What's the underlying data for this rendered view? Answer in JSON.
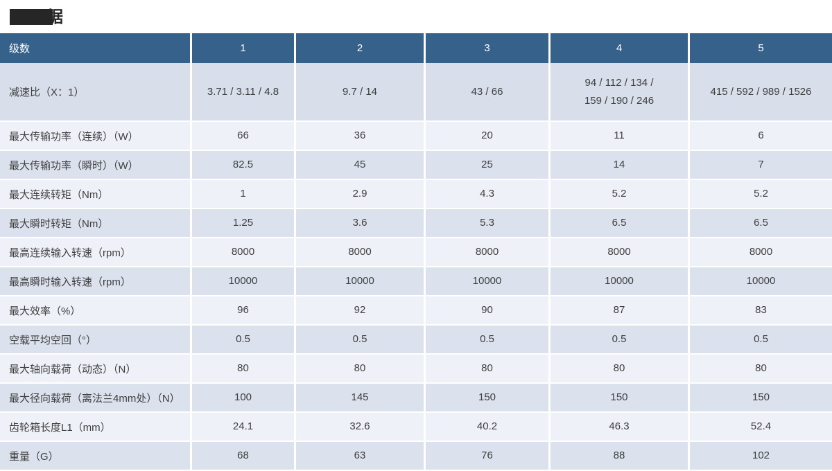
{
  "page": {
    "title": {
      "visible_char": "据",
      "note_redacted_block": true
    }
  },
  "colors": {
    "header_bg": "#35618a",
    "header_text": "#ffffff",
    "row_first_bg": "#d8deea",
    "row_dark_bg": "#dbe1ed",
    "row_light_bg": "#eef1f8",
    "cell_text": "#3e3e3e",
    "title_color": "#262626"
  },
  "table": {
    "header": [
      "级数",
      "1",
      "2",
      "3",
      "4",
      "5"
    ],
    "rows": [
      {
        "label": "减速比（X：1）",
        "values": [
          "3.71 / 3.11 / 4.8",
          "9.7 / 14",
          "43 / 66",
          "94 / 112 / 134 /\n159 / 190 / 246",
          "415 / 592 / 989 / 1526"
        ]
      },
      {
        "label": "最大传输功率（连续）（W）",
        "values": [
          "66",
          "36",
          "20",
          "11",
          "6"
        ]
      },
      {
        "label": "最大传输功率（瞬时）（W）",
        "values": [
          "82.5",
          "45",
          "25",
          "14",
          "7"
        ]
      },
      {
        "label": "最大连续转矩（Nm）",
        "values": [
          "1",
          "2.9",
          "4.3",
          "5.2",
          "5.2"
        ]
      },
      {
        "label": "最大瞬时转矩（Nm）",
        "values": [
          "1.25",
          "3.6",
          "5.3",
          "6.5",
          "6.5"
        ]
      },
      {
        "label": "最高连续输入转速（rpm）",
        "values": [
          "8000",
          "8000",
          "8000",
          "8000",
          "8000"
        ]
      },
      {
        "label": "最高瞬时输入转速（rpm）",
        "values": [
          "10000",
          "10000",
          "10000",
          "10000",
          "10000"
        ]
      },
      {
        "label": "最大效率（%）",
        "values": [
          "96",
          "92",
          "90",
          "87",
          "83"
        ]
      },
      {
        "label": "空载平均空回（°）",
        "values": [
          "0.5",
          "0.5",
          "0.5",
          "0.5",
          "0.5"
        ]
      },
      {
        "label": "最大轴向载荷（动态）（N）",
        "values": [
          "80",
          "80",
          "80",
          "80",
          "80"
        ]
      },
      {
        "label": "最大径向载荷（离法兰4mm处）（N）",
        "values": [
          "100",
          "145",
          "150",
          "150",
          "150"
        ]
      },
      {
        "label": "齿轮箱长度L1（mm）",
        "values": [
          "24.1",
          "32.6",
          "40.2",
          "46.3",
          "52.4"
        ]
      },
      {
        "label": "重量（G）",
        "values": [
          "68",
          "63",
          "76",
          "88",
          "102"
        ]
      }
    ]
  }
}
